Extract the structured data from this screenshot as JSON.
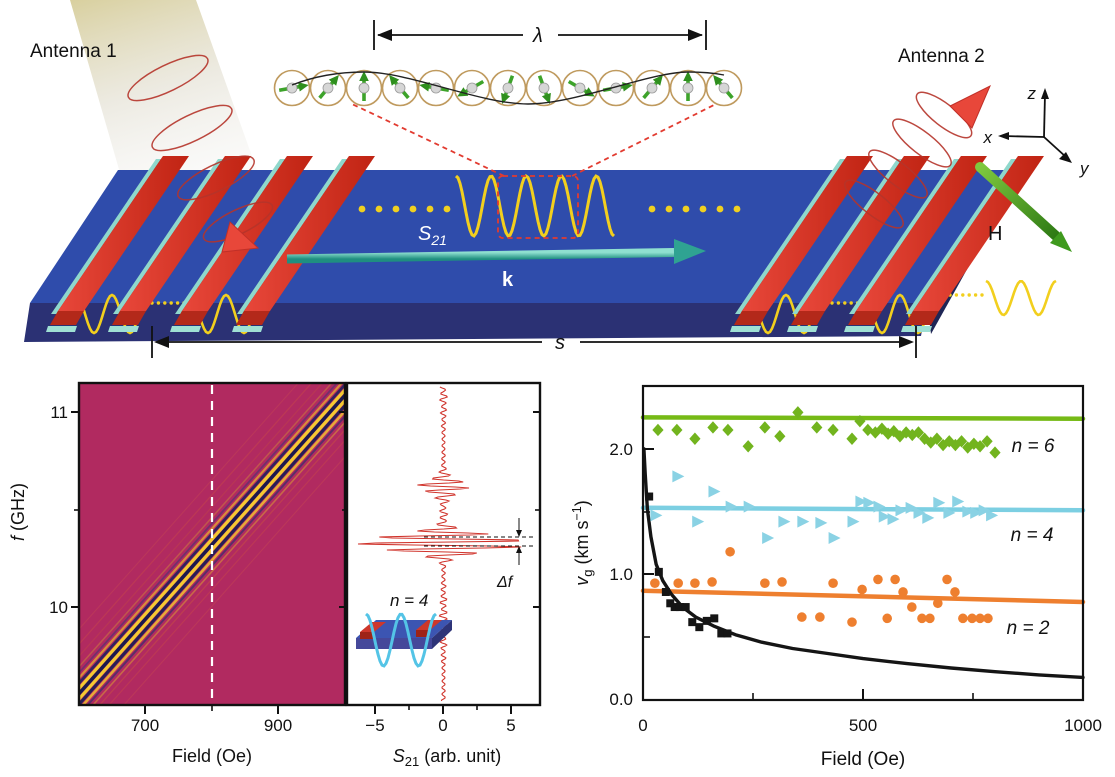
{
  "colors": {
    "substrate_top": "#2f4cab",
    "substrate_front": "#2b3174",
    "substrate_side": "#1f2656",
    "antenna_red": "#d6301f",
    "antenna_red_dark": "#8e1a10",
    "seed_teal": "#8fd8cc",
    "wave_yellow": "#f2cf1e",
    "spin_green": "#3da32a",
    "ring_tan": "#bf9a5e",
    "s21_arrow_teal": "#2fa392",
    "h_green": "#3f9a1e",
    "heatmap_bg": "#b12a60",
    "signal_red": "#d0342c",
    "n6_green": "#72b41e",
    "n4_cyan": "#7ccfe2",
    "n2_orange": "#ee7f2f",
    "fit_black": "#151515"
  },
  "schematic": {
    "antenna1_label": "Antenna 1",
    "antenna2_label": "Antenna 2",
    "lambda_label": "λ",
    "s21_main": "S",
    "s21_sub": "21",
    "k_label": "k",
    "s_label": "s",
    "h_label": "H",
    "axis_labels": {
      "x": "x",
      "y": "y",
      "z": "z"
    },
    "spin_angles_deg": [
      10,
      50,
      90,
      130,
      170,
      210,
      250,
      290,
      330,
      10,
      50,
      90,
      130
    ]
  },
  "chart_data": [
    {
      "id": "transmission-map",
      "type": "heatmap",
      "xlabel": "Field (Oe)",
      "ylabel_parts": [
        "f",
        " (GHz)"
      ],
      "xlim": [
        600,
        1000
      ],
      "ylim": [
        9.5,
        11.15
      ],
      "xtick_labels": [
        "700",
        "900"
      ],
      "xtick_values": [
        700,
        900
      ],
      "xtick_minor": [
        800
      ],
      "ytick_labels": [
        "11",
        "10"
      ],
      "ytick_values": [
        11,
        10
      ],
      "ytick_minor": [
        10.5
      ],
      "background_color": "#b12a60",
      "dashed_marker_field": 800,
      "resonance_band": {
        "from": [
          600,
          9.55
        ],
        "to": [
          1000,
          11.08
        ]
      },
      "band_stripes": [
        [
          -44,
          "#e06a40",
          1.0,
          0.2
        ],
        [
          -34,
          "#d85a3a",
          1.2,
          0.3
        ],
        [
          -26,
          "#c8523a",
          1.2,
          0.3
        ],
        [
          -19,
          "#d89a30",
          1.5,
          0.4
        ],
        [
          -15,
          "#34347a",
          1.8,
          0.5
        ],
        [
          -11.5,
          "#eab62c",
          2.2,
          0.7
        ],
        [
          -8,
          "#23235e",
          2.6,
          0.9
        ],
        [
          -4.5,
          "#f4ca32",
          3.2,
          1
        ],
        [
          -1,
          "#1a1a4e",
          3.4,
          1
        ],
        [
          2.5,
          "#f4ca32",
          3.2,
          1
        ],
        [
          6,
          "#1f1f56",
          3.0,
          0.95
        ],
        [
          9.5,
          "#f0c032",
          2.6,
          0.85
        ],
        [
          13,
          "#2e2e6e",
          2.0,
          0.65
        ],
        [
          17,
          "#e0a830",
          1.6,
          0.5
        ],
        [
          22,
          "#d05a3a",
          1.3,
          0.4
        ],
        [
          29,
          "#d85a3a",
          1.1,
          0.3
        ],
        [
          40,
          "#e06a40",
          1.0,
          0.22
        ]
      ]
    },
    {
      "id": "s21-linecut",
      "type": "line",
      "xlabel_parts": [
        "S",
        "21",
        " (arb. unit)"
      ],
      "xtick_labels": [
        "−5",
        "0",
        "5"
      ],
      "xtick_values": [
        -5,
        0,
        5
      ],
      "xlim": [
        -7.1,
        7.1
      ],
      "trace_color": "#d0342c",
      "packets": [
        {
          "f_ghz": 10.62,
          "amplitude": 1.7,
          "sigma_ghz": 0.045
        },
        {
          "f_ghz": 10.33,
          "amplitude": 6.4,
          "sigma_ghz": 0.055
        }
      ],
      "noise_amplitude": 0.32,
      "oscillation_period_ghz": 0.0335,
      "delta_f_label": "Δf",
      "inset_label": "n = 4"
    },
    {
      "id": "group-velocity",
      "type": "scatter",
      "xlabel": "Field (Oe)",
      "ylabel_parts": [
        "v",
        "g",
        " (km s",
        "−1",
        ")"
      ],
      "xlim": [
        0,
        1000
      ],
      "ylim": [
        0,
        2.5
      ],
      "xtick_labels": [
        "0",
        "500",
        "1000"
      ],
      "xtick_values": [
        0,
        500,
        1000
      ],
      "xtick_minor": [
        250,
        750
      ],
      "ytick_labels": [
        "0.0",
        "1.0",
        "2.0"
      ],
      "ytick_values": [
        0,
        1,
        2
      ],
      "ytick_minor": [
        0.5,
        1.5
      ],
      "grid": false,
      "legend_position": "inline-right",
      "series": [
        {
          "label": "n = 6",
          "marker": "diamond",
          "color": "#72b41e",
          "line_color": "#76ba16",
          "fit_line": [
            [
              0,
              2.25
            ],
            [
              1000,
              2.24
            ]
          ],
          "points": [
            [
              34,
              2.15
            ],
            [
              77,
              2.15
            ],
            [
              118,
              2.08
            ],
            [
              159,
              2.17
            ],
            [
              193,
              2.15
            ],
            [
              239,
              2.02
            ],
            [
              277,
              2.17
            ],
            [
              311,
              2.1
            ],
            [
              352,
              2.29
            ],
            [
              395,
              2.17
            ],
            [
              432,
              2.15
            ],
            [
              475,
              2.08
            ],
            [
              493,
              2.22
            ],
            [
              511,
              2.15
            ],
            [
              528,
              2.13
            ],
            [
              543,
              2.16
            ],
            [
              557,
              2.12
            ],
            [
              570,
              2.14
            ],
            [
              584,
              2.1
            ],
            [
              598,
              2.13
            ],
            [
              612,
              2.11
            ],
            [
              626,
              2.13
            ],
            [
              640,
              2.08
            ],
            [
              654,
              2.05
            ],
            [
              668,
              2.08
            ],
            [
              682,
              2.03
            ],
            [
              696,
              2.06
            ],
            [
              710,
              2.03
            ],
            [
              724,
              2.06
            ],
            [
              738,
              2.01
            ],
            [
              752,
              2.04
            ],
            [
              766,
              2.02
            ],
            [
              782,
              2.06
            ],
            [
              800,
              1.97
            ]
          ]
        },
        {
          "label": "n = 4",
          "marker": "triangle-right",
          "color": "#8ad2e4",
          "line_color": "#7ccfe2",
          "fit_line": [
            [
              0,
              1.53
            ],
            [
              1000,
              1.51
            ]
          ],
          "points": [
            [
              27,
              1.47
            ],
            [
              77,
              1.78
            ],
            [
              122,
              1.42
            ],
            [
              159,
              1.66
            ],
            [
              198,
              1.54
            ],
            [
              239,
              1.54
            ],
            [
              281,
              1.29
            ],
            [
              318,
              1.42
            ],
            [
              361,
              1.42
            ],
            [
              402,
              1.41
            ],
            [
              432,
              1.29
            ],
            [
              475,
              1.42
            ],
            [
              493,
              1.58
            ],
            [
              511,
              1.57
            ],
            [
              534,
              1.54
            ],
            [
              546,
              1.46
            ],
            [
              566,
              1.44
            ],
            [
              584,
              1.51
            ],
            [
              607,
              1.53
            ],
            [
              625,
              1.49
            ],
            [
              645,
              1.45
            ],
            [
              670,
              1.57
            ],
            [
              693,
              1.49
            ],
            [
              713,
              1.58
            ],
            [
              736,
              1.5
            ],
            [
              754,
              1.49
            ],
            [
              773,
              1.51
            ],
            [
              790,
              1.47
            ]
          ]
        },
        {
          "label": "n = 2",
          "marker": "circle",
          "color": "#ee7f2f",
          "line_color": "#ee7f2f",
          "fit_line": [
            [
              0,
              0.87
            ],
            [
              1000,
              0.78
            ]
          ],
          "points": [
            [
              27,
              0.93
            ],
            [
              80,
              0.93
            ],
            [
              118,
              0.93
            ],
            [
              157,
              0.94
            ],
            [
              198,
              1.18
            ],
            [
              277,
              0.93
            ],
            [
              316,
              0.94
            ],
            [
              361,
              0.66
            ],
            [
              402,
              0.66
            ],
            [
              432,
              0.93
            ],
            [
              475,
              0.62
            ],
            [
              498,
              0.88
            ],
            [
              534,
              0.96
            ],
            [
              555,
              0.65
            ],
            [
              573,
              0.96
            ],
            [
              591,
              0.86
            ],
            [
              611,
              0.74
            ],
            [
              634,
              0.65
            ],
            [
              652,
              0.65
            ],
            [
              670,
              0.77
            ],
            [
              691,
              0.96
            ],
            [
              709,
              0.86
            ],
            [
              727,
              0.65
            ],
            [
              748,
              0.65
            ],
            [
              766,
              0.65
            ],
            [
              784,
              0.65
            ]
          ]
        },
        {
          "label": "",
          "marker": "square",
          "color": "#151515",
          "line_color": "#151515",
          "fit_curve": [
            [
              2,
              2.0
            ],
            [
              5,
              1.8
            ],
            [
              10,
              1.52
            ],
            [
              18,
              1.3
            ],
            [
              30,
              1.08
            ],
            [
              45,
              0.95
            ],
            [
              65,
              0.84
            ],
            [
              90,
              0.74
            ],
            [
              120,
              0.66
            ],
            [
              160,
              0.59
            ],
            [
              210,
              0.52
            ],
            [
              270,
              0.46
            ],
            [
              340,
              0.41
            ],
            [
              420,
              0.37
            ],
            [
              500,
              0.33
            ],
            [
              600,
              0.29
            ],
            [
              700,
              0.255
            ],
            [
              800,
              0.225
            ],
            [
              900,
              0.2
            ],
            [
              1000,
              0.18
            ]
          ],
          "points": [
            [
              14,
              1.62
            ],
            [
              36,
              1.02
            ],
            [
              52,
              0.86
            ],
            [
              62,
              0.77
            ],
            [
              72,
              0.74
            ],
            [
              84,
              0.74
            ],
            [
              97,
              0.74
            ],
            [
              112,
              0.62
            ],
            [
              128,
              0.58
            ],
            [
              145,
              0.63
            ],
            [
              162,
              0.65
            ],
            [
              178,
              0.53
            ],
            [
              192,
              0.53
            ]
          ]
        }
      ]
    }
  ]
}
